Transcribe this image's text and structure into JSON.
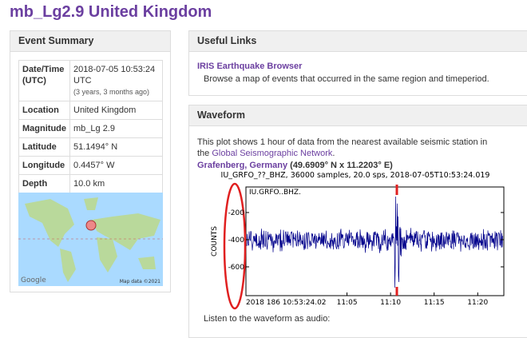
{
  "title": "mb_Lg2.9 United Kingdom",
  "event_summary": {
    "heading": "Event Summary",
    "rows": [
      {
        "label": "Date/Time (UTC)",
        "value": "2018-07-05 10:53:24 UTC",
        "note": "(3 years, 3 months ago)"
      },
      {
        "label": "Location",
        "value": "United Kingdom"
      },
      {
        "label": "Magnitude",
        "value": "mb_Lg 2.9"
      },
      {
        "label": "Latitude",
        "value": "51.1494° N"
      },
      {
        "label": "Longitude",
        "value": "0.4457° W"
      },
      {
        "label": "Depth",
        "value": "10.0 km"
      }
    ],
    "map": {
      "credit": "Google",
      "attribution": "Map data ©2021"
    }
  },
  "useful_links": {
    "heading": "Useful Links",
    "link": "IRIS Earthquake Browser",
    "description": "Browse a map of events that occurred in the same region and timeperiod."
  },
  "waveform": {
    "heading": "Waveform",
    "intro": "This plot shows 1 hour of data from the nearest available seismic station in the ",
    "intro_link": "Global Seismographic Network",
    "intro_end": ".",
    "station": "Grafenberg, Germany",
    "coords": " (49.6909° N x 11.2203° E)",
    "plot": {
      "title": "IU_GRFO_??_BHZ, 36000 samples, 20.0 sps, 2018-07-05T10:53:24.019",
      "channel": "IU.GRFO..BHZ.",
      "ylabel": "COUNTS",
      "ylim": [
        -812,
        -12
      ],
      "yticks": [
        -200,
        -400,
        -600
      ],
      "xlim": [
        0,
        29.6
      ],
      "xticks": [
        {
          "value": 0,
          "label": "2018 186 10:53:24.02"
        },
        {
          "value": 11.6,
          "label": "11:05"
        },
        {
          "value": 16.6,
          "label": "11:10"
        },
        {
          "value": 21.6,
          "label": "11:15"
        },
        {
          "value": 26.6,
          "label": "11:20"
        }
      ]
    },
    "audio": "Listen to the waveform as audio:"
  }
}
